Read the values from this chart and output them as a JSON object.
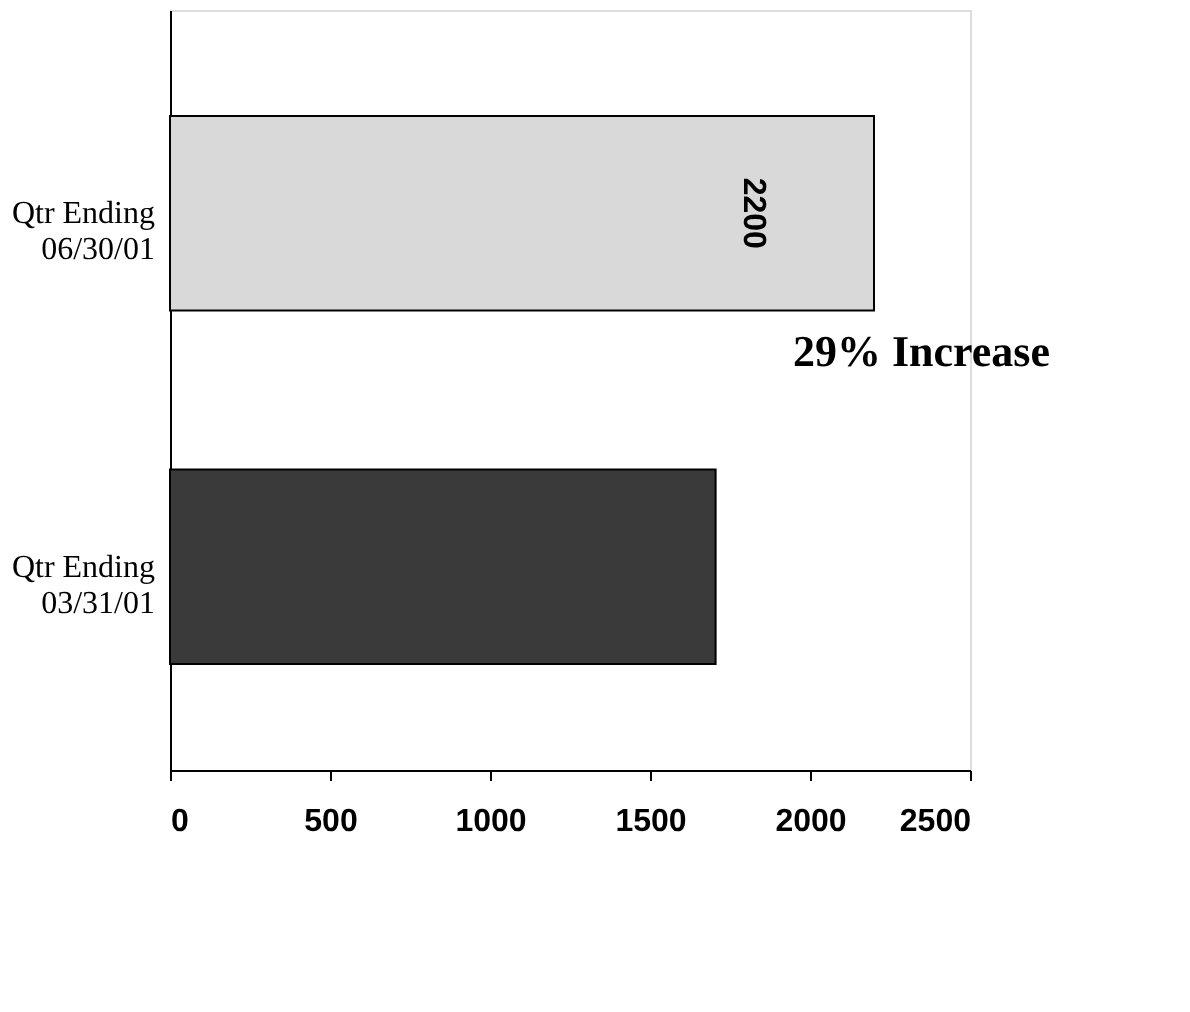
{
  "chart_data": {
    "type": "bar",
    "orientation": "horizontal",
    "categories": [
      "Qtr Ending 06/30/01",
      "Qtr Ending 03/31/01"
    ],
    "values": [
      2200,
      1705
    ],
    "colors": [
      "#d9d9d9",
      "#3a3a3a"
    ],
    "value_labels": [
      "2200",
      null
    ],
    "xlim": [
      0,
      2500
    ],
    "xticks": [
      0,
      500,
      1000,
      1500,
      2000,
      2500
    ],
    "annotations": [
      "29% Increase"
    ]
  }
}
